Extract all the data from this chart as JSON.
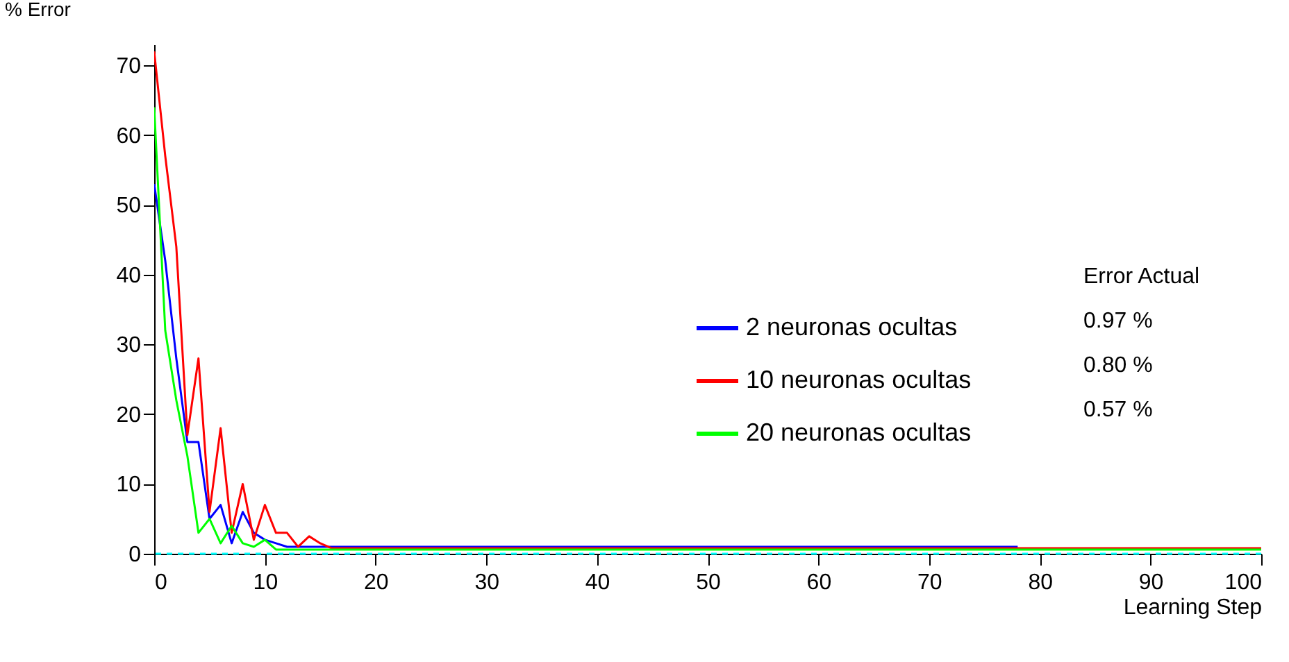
{
  "chart_data": {
    "type": "line",
    "xlabel": "Learning Step",
    "ylabel": "% Error",
    "legend_title": "Error Actual",
    "xlim": [
      0,
      100
    ],
    "ylim": [
      0,
      73
    ],
    "xticks": [
      0,
      10,
      20,
      30,
      40,
      50,
      60,
      70,
      80,
      90,
      100
    ],
    "yticks": [
      0,
      10,
      20,
      30,
      40,
      50,
      60,
      70
    ],
    "grid": false,
    "legend": "right",
    "marker": "none",
    "line_style": "solid",
    "series": [
      {
        "name": "2 neuronas ocultas",
        "color": "#0000ff",
        "x": [
          0,
          1,
          2,
          3,
          4,
          5,
          6,
          7,
          8,
          9,
          10,
          11,
          12,
          13,
          78
        ],
        "values": [
          53,
          42,
          28,
          16,
          16,
          5,
          7,
          1.5,
          6,
          3,
          2,
          1.5,
          1,
          1,
          1
        ]
      },
      {
        "name": "10 neuronas ocultas",
        "color": "#ff0000",
        "x": [
          0,
          1,
          2,
          3,
          4,
          5,
          6,
          7,
          8,
          9,
          10,
          11,
          12,
          13,
          14,
          15,
          16,
          100
        ],
        "values": [
          72,
          57,
          44,
          17,
          28,
          6,
          18,
          3,
          10,
          2,
          7,
          3,
          3,
          1,
          2.5,
          1.5,
          0.8,
          0.8
        ]
      },
      {
        "name": "20 neuronas ocultas",
        "color": "#00ff00",
        "x": [
          0,
          1,
          2,
          3,
          4,
          5,
          6,
          7,
          8,
          9,
          10,
          11,
          100
        ],
        "values": [
          64,
          32,
          22,
          14,
          3,
          5,
          1.5,
          4,
          1.5,
          1,
          2,
          0.6,
          0.6
        ]
      }
    ],
    "ref_lines": [
      {
        "axis": "y",
        "value": 0,
        "color": "#00ffff",
        "line_style": "dashed"
      }
    ],
    "annotations": [
      "0.97 %",
      "0.80 %",
      "0.57 %"
    ]
  }
}
